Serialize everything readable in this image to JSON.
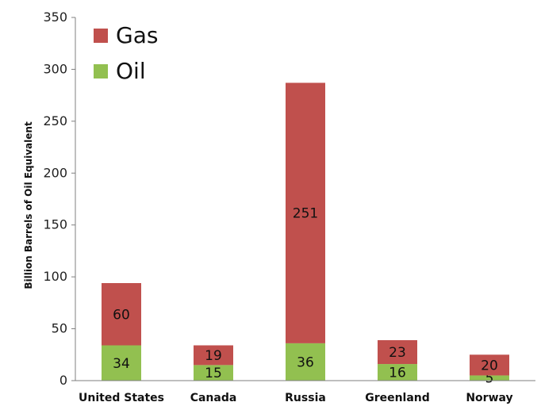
{
  "chart_data": {
    "type": "bar",
    "stacked": true,
    "categories": [
      "United States",
      "Canada",
      "Russia",
      "Greenland",
      "Norway"
    ],
    "series": [
      {
        "name": "Oil",
        "values": [
          34,
          15,
          36,
          16,
          5
        ],
        "color": "#92c050"
      },
      {
        "name": "Gas",
        "values": [
          60,
          19,
          251,
          23,
          20
        ],
        "color": "#c0504d"
      }
    ],
    "title": "",
    "xlabel": "",
    "ylabel": "Billion Barrels of Oil Equivalent",
    "ylim": [
      0,
      350
    ],
    "yticks": [
      0,
      50,
      100,
      150,
      200,
      250,
      300,
      350
    ],
    "grid": false,
    "legend": {
      "position": "top-left",
      "items": [
        {
          "label": "Gas",
          "color": "#c0504d"
        },
        {
          "label": "Oil",
          "color": "#92c050"
        }
      ]
    }
  }
}
